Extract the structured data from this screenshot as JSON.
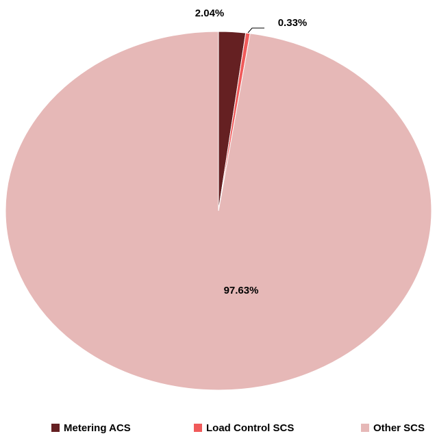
{
  "chart_data": {
    "type": "pie",
    "categories": [
      "Metering ACS",
      "Load Control SCS",
      "Other SCS"
    ],
    "values": [
      2.04,
      0.33,
      97.63
    ],
    "value_labels": [
      "2.04%",
      "0.33%",
      "97.63%"
    ],
    "colors": [
      "#652022",
      "#f05a5a",
      "#e6b8b7"
    ],
    "legend": "bottom"
  }
}
